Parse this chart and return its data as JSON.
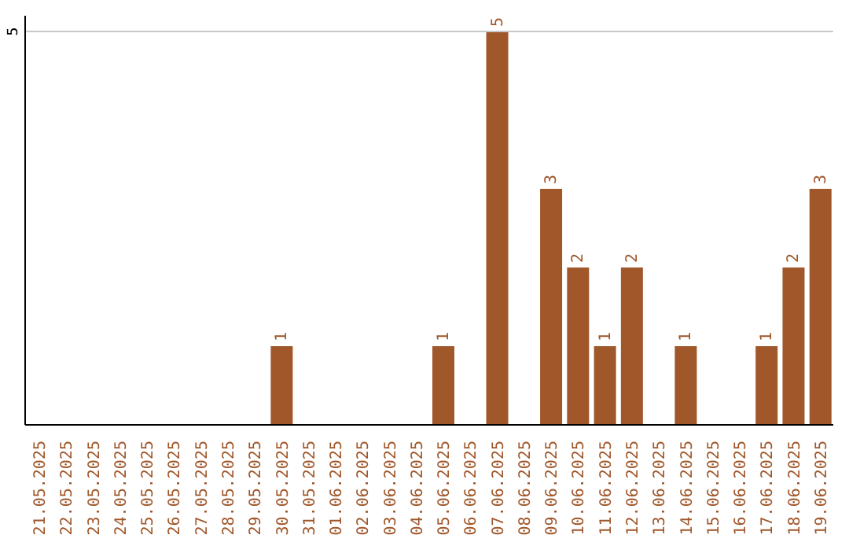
{
  "chart_data": {
    "type": "bar",
    "categories": [
      "21.05.2025",
      "22.05.2025",
      "23.05.2025",
      "24.05.2025",
      "25.05.2025",
      "26.05.2025",
      "27.05.2025",
      "28.05.2025",
      "29.05.2025",
      "30.05.2025",
      "31.05.2025",
      "01.06.2025",
      "02.06.2025",
      "03.06.2025",
      "04.06.2025",
      "05.06.2025",
      "06.06.2025",
      "07.06.2025",
      "08.06.2025",
      "09.06.2025",
      "10.06.2025",
      "11.06.2025",
      "12.06.2025",
      "13.06.2025",
      "14.06.2025",
      "15.06.2025",
      "16.06.2025",
      "17.06.2025",
      "18.06.2025",
      "19.06.2025"
    ],
    "values": [
      0,
      0,
      0,
      0,
      0,
      0,
      0,
      0,
      0,
      1,
      0,
      0,
      0,
      0,
      0,
      1,
      0,
      5,
      0,
      3,
      2,
      1,
      2,
      0,
      1,
      0,
      0,
      1,
      2,
      3
    ],
    "value_labels": [
      null,
      null,
      null,
      null,
      null,
      null,
      null,
      null,
      null,
      "1",
      null,
      null,
      null,
      null,
      null,
      "1",
      null,
      "5",
      null,
      "3",
      "2",
      "1",
      "2",
      null,
      "1",
      null,
      null,
      "1",
      "2",
      "3"
    ],
    "color": "#a0572a",
    "ylim": [
      0,
      5.2
    ],
    "yticks": [
      5
    ],
    "grid": "y"
  }
}
